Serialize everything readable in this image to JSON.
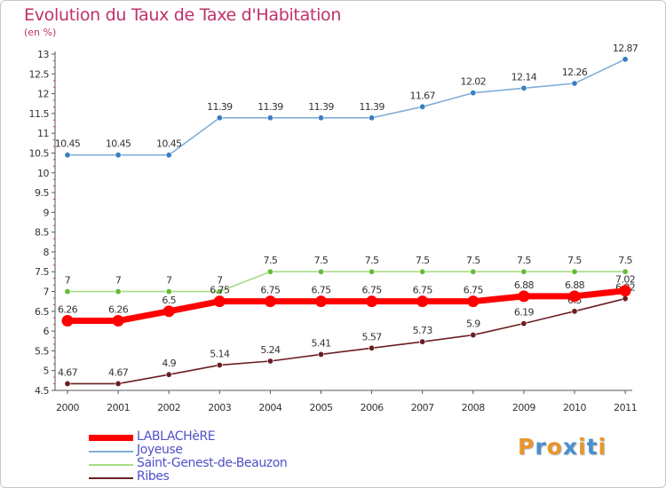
{
  "chart_title": "Evolution du Taux de Taxe d'Habitation",
  "chart_unit": "(en %)",
  "logo": {
    "text": "Proxiti",
    "letter_colors": [
      "#e8962a",
      "#4a8fd0",
      "#e8962a",
      "#4a8fd0",
      "#e8962a",
      "#4a8fd0",
      "#e8962a"
    ]
  },
  "chart_data": {
    "type": "line",
    "title": "Evolution du Taux de Taxe d'Habitation",
    "ylabel": "(en %)",
    "xlabel": "",
    "x": [
      "2000",
      "2001",
      "2002",
      "2003",
      "2004",
      "2005",
      "2006",
      "2007",
      "2008",
      "2009",
      "2010",
      "2011"
    ],
    "ylim": [
      4.5,
      13
    ],
    "yticks": [
      4.5,
      5,
      5.5,
      6,
      6.5,
      7,
      7.5,
      8,
      8.5,
      9,
      9.5,
      10,
      10.5,
      11,
      11.5,
      12,
      12.5,
      13
    ],
    "ytick_labels": [
      "4.5",
      "5",
      "5.5",
      "6",
      "6.5",
      "7",
      "7.5",
      "8",
      "8.5",
      "9",
      "9.5",
      "10",
      "10.5",
      "11",
      "11.5",
      "12",
      "12.5",
      "13"
    ],
    "grid": false,
    "legend_position": "bottom-left",
    "series": [
      {
        "name": "Ribes",
        "color": "#6b1e22",
        "marker_color": "#6b1e22",
        "values": [
          4.67,
          4.67,
          4.9,
          5.14,
          5.24,
          5.41,
          5.57,
          5.73,
          5.9,
          6.19,
          6.5,
          6.82
        ],
        "labels": [
          "4.67",
          "4.67",
          "4.9",
          "5.14",
          "5.24",
          "5.41",
          "5.57",
          "5.73",
          "5.9",
          "6.19",
          "6.5",
          "6.82"
        ]
      },
      {
        "name": "Saint-Genest-de-Beauzon",
        "color": "#a8dc88",
        "marker_color": "#66bb33",
        "values": [
          7,
          7,
          7,
          7,
          7.5,
          7.5,
          7.5,
          7.5,
          7.5,
          7.5,
          7.5,
          7.5
        ],
        "labels": [
          "7",
          "7",
          "7",
          "7",
          "7.5",
          "7.5",
          "7.5",
          "7.5",
          "7.5",
          "7.5",
          "7.5",
          "7.5"
        ]
      },
      {
        "name": "Joyeuse",
        "color": "#80aed8",
        "marker_color": "#3a7fc0",
        "values": [
          10.45,
          10.45,
          10.45,
          11.39,
          11.39,
          11.39,
          11.39,
          11.67,
          12.02,
          12.14,
          12.26,
          12.87
        ],
        "labels": [
          "10.45",
          "10.45",
          "10.45",
          "11.39",
          "11.39",
          "11.39",
          "11.39",
          "11.67",
          "12.02",
          "12.14",
          "12.26",
          "12.87"
        ]
      },
      {
        "name": "LABLACHèRE",
        "color": "#ff0000",
        "marker_color": "#ff0000",
        "values": [
          6.26,
          6.26,
          6.5,
          6.75,
          6.75,
          6.75,
          6.75,
          6.75,
          6.75,
          6.88,
          6.88,
          7.02
        ],
        "labels": [
          "6.26",
          "6.26",
          "6.5",
          "6.75",
          "6.75",
          "6.75",
          "6.75",
          "6.75",
          "6.75",
          "6.88",
          "6.88",
          "7.02"
        ]
      }
    ],
    "legend_order": [
      "LABLACHèRE",
      "Joyeuse",
      "Saint-Genest-de-Beauzon",
      "Ribes"
    ]
  }
}
